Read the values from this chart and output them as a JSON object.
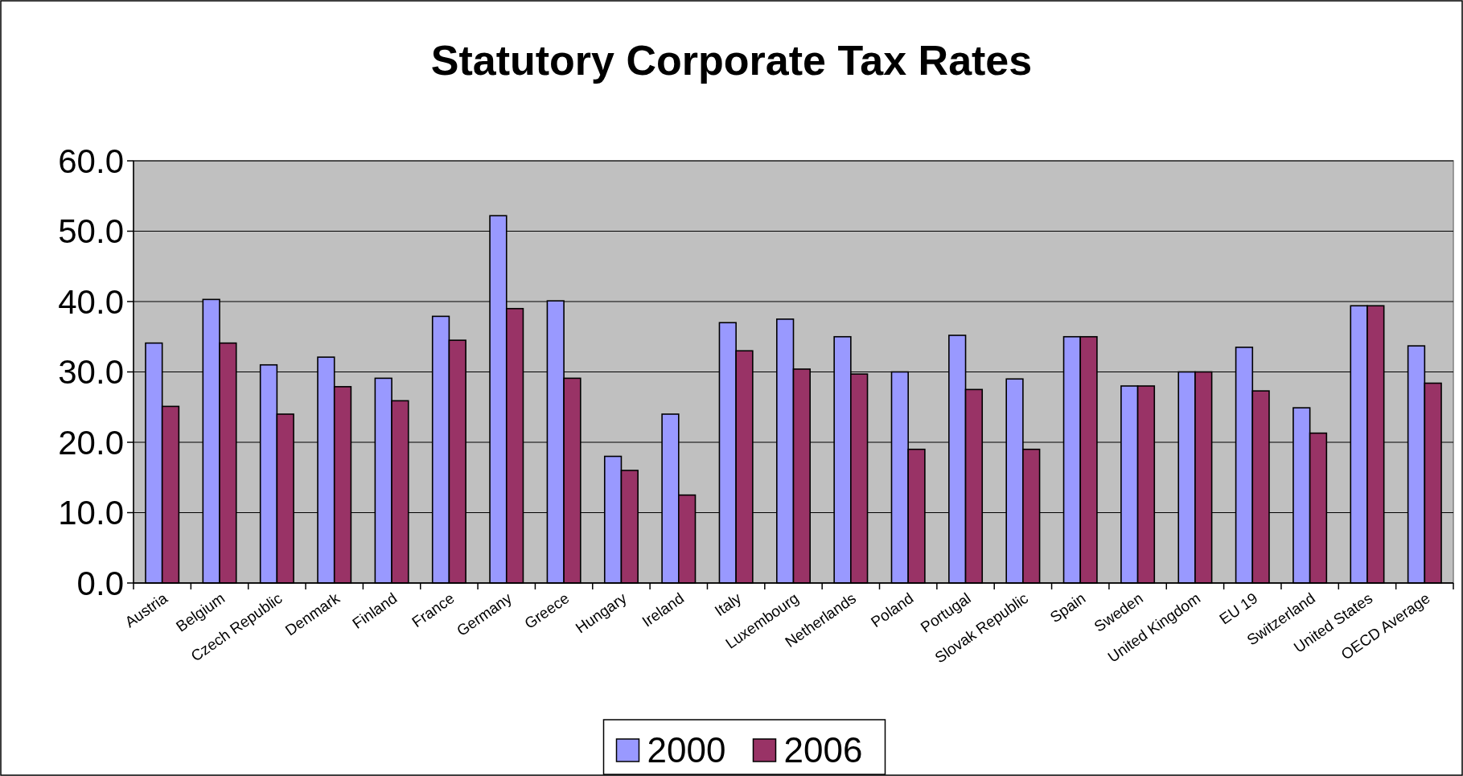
{
  "chart_data": {
    "type": "bar",
    "title": "Statutory Corporate Tax Rates",
    "categories": [
      "Austria",
      "Belgium",
      "Czech Republic",
      "Denmark",
      "Finland",
      "France",
      "Germany",
      "Greece",
      "Hungary",
      "Ireland",
      "Italy",
      "Luxembourg",
      "Netherlands",
      "Poland",
      "Portugal",
      "Slovak Republic",
      "Spain",
      "Sweden",
      "United Kingdom",
      "EU 19",
      "Switzerland",
      "United States",
      "OECD Average"
    ],
    "series": [
      {
        "name": "2000",
        "color": "#9999ff",
        "values": [
          34.1,
          40.3,
          31.0,
          32.1,
          29.1,
          37.9,
          52.2,
          40.1,
          18.0,
          24.0,
          37.0,
          37.5,
          35.0,
          30.0,
          35.2,
          29.0,
          35.0,
          28.0,
          30.0,
          33.5,
          24.9,
          39.4,
          33.7
        ]
      },
      {
        "name": "2006",
        "color": "#993366",
        "values": [
          25.1,
          34.1,
          24.0,
          27.9,
          25.9,
          34.5,
          39.0,
          29.1,
          16.0,
          12.5,
          33.0,
          30.4,
          29.7,
          19.0,
          27.5,
          19.0,
          35.0,
          28.0,
          30.0,
          27.3,
          21.3,
          39.4,
          28.4
        ]
      }
    ],
    "ylim": [
      0,
      60
    ],
    "yticks": [
      {
        "value": 0,
        "label": "0.0"
      },
      {
        "value": 10,
        "label": "10.0"
      },
      {
        "value": 20,
        "label": "20.0"
      },
      {
        "value": 30,
        "label": "30.0"
      },
      {
        "value": 40,
        "label": "40.0"
      },
      {
        "value": 50,
        "label": "50.0"
      },
      {
        "value": 60,
        "label": "60.0"
      }
    ],
    "grid": "y",
    "legend": "bottom"
  }
}
